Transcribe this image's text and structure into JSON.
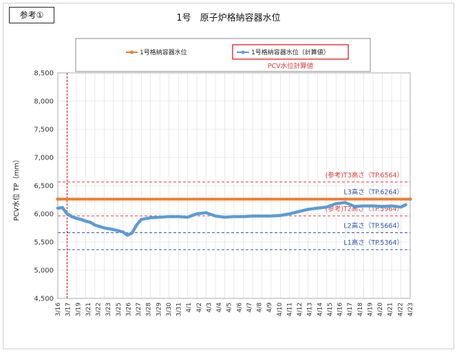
{
  "reference_label": "参考①",
  "chart_data": {
    "type": "line",
    "title": "1号　原子炉格納容器水位",
    "ylabel": "PCV水位 TP（mm）",
    "xlabel": "",
    "ylim": [
      4500,
      8500
    ],
    "ytick_step": 500,
    "yticks": [
      "4,500",
      "5,000",
      "5,500",
      "6,000",
      "6,500",
      "7,000",
      "7,500",
      "8,000",
      "8,500"
    ],
    "x_start": "3/16",
    "x_end": "4/23",
    "xticks": [
      "3/16",
      "3/17",
      "3/19",
      "3/21",
      "3/22",
      "3/23",
      "3/25",
      "3/26",
      "3/27",
      "3/28",
      "3/29",
      "3/30",
      "3/31",
      "4/1",
      "4/2",
      "4/3",
      "4/4",
      "4/5",
      "4/6",
      "4/7",
      "4/8",
      "4/9",
      "4/10",
      "4/11",
      "4/12",
      "4/13",
      "4/14",
      "4/15",
      "4/16",
      "4/17",
      "4/18",
      "4/19",
      "4/20",
      "4/21",
      "4/22",
      "4/23"
    ],
    "grid": true,
    "legend_placement": "top",
    "series": [
      {
        "name": "1号格納容器水位",
        "color": "#ed7d31",
        "x": [
          0,
          38
        ],
        "values": [
          6260,
          6260
        ]
      },
      {
        "name": "1号格納容器水位（計算値）",
        "color": "#5b9bd5",
        "x": [
          0,
          0.5,
          1,
          1.5,
          2,
          2.5,
          3,
          3.5,
          4,
          5,
          6,
          7,
          7.5,
          8,
          8.5,
          9,
          10,
          11,
          12,
          13,
          14,
          15,
          16,
          17,
          18,
          19,
          20,
          21,
          22,
          23,
          24,
          25,
          26,
          27,
          28,
          29,
          30,
          31,
          32,
          33,
          34,
          35,
          36,
          37,
          37.5
        ],
        "values": [
          6100,
          6110,
          6000,
          5950,
          5920,
          5900,
          5870,
          5850,
          5800,
          5750,
          5720,
          5680,
          5620,
          5660,
          5800,
          5900,
          5930,
          5940,
          5950,
          5950,
          5940,
          6000,
          6020,
          5960,
          5940,
          5950,
          5950,
          5960,
          5960,
          5960,
          5970,
          6000,
          6040,
          6080,
          6100,
          6120,
          6180,
          6200,
          6130,
          6140,
          6140,
          6130,
          6140,
          6120,
          6160
        ]
      }
    ],
    "reference_lines": [
      {
        "label": "(参考)T3高さ（TP.6564）",
        "value": 6564,
        "color": "#e03c3c"
      },
      {
        "label": "L3高さ（TP.6264）",
        "value": 6264,
        "color": "#2f56b0"
      },
      {
        "label": "(参考)T2高さ（TP.5964）",
        "value": 5964,
        "color": "#e03c3c"
      },
      {
        "label": "L2高さ（TP.5664）",
        "value": 5664,
        "color": "#2f56b0"
      },
      {
        "label": "L1高さ（TP.5364）",
        "value": 5364,
        "color": "#2f56b0"
      }
    ],
    "annotation": "PCV水位計算値",
    "vertical_marker_x": 1,
    "vertical_marker_color": "#cc0000"
  }
}
